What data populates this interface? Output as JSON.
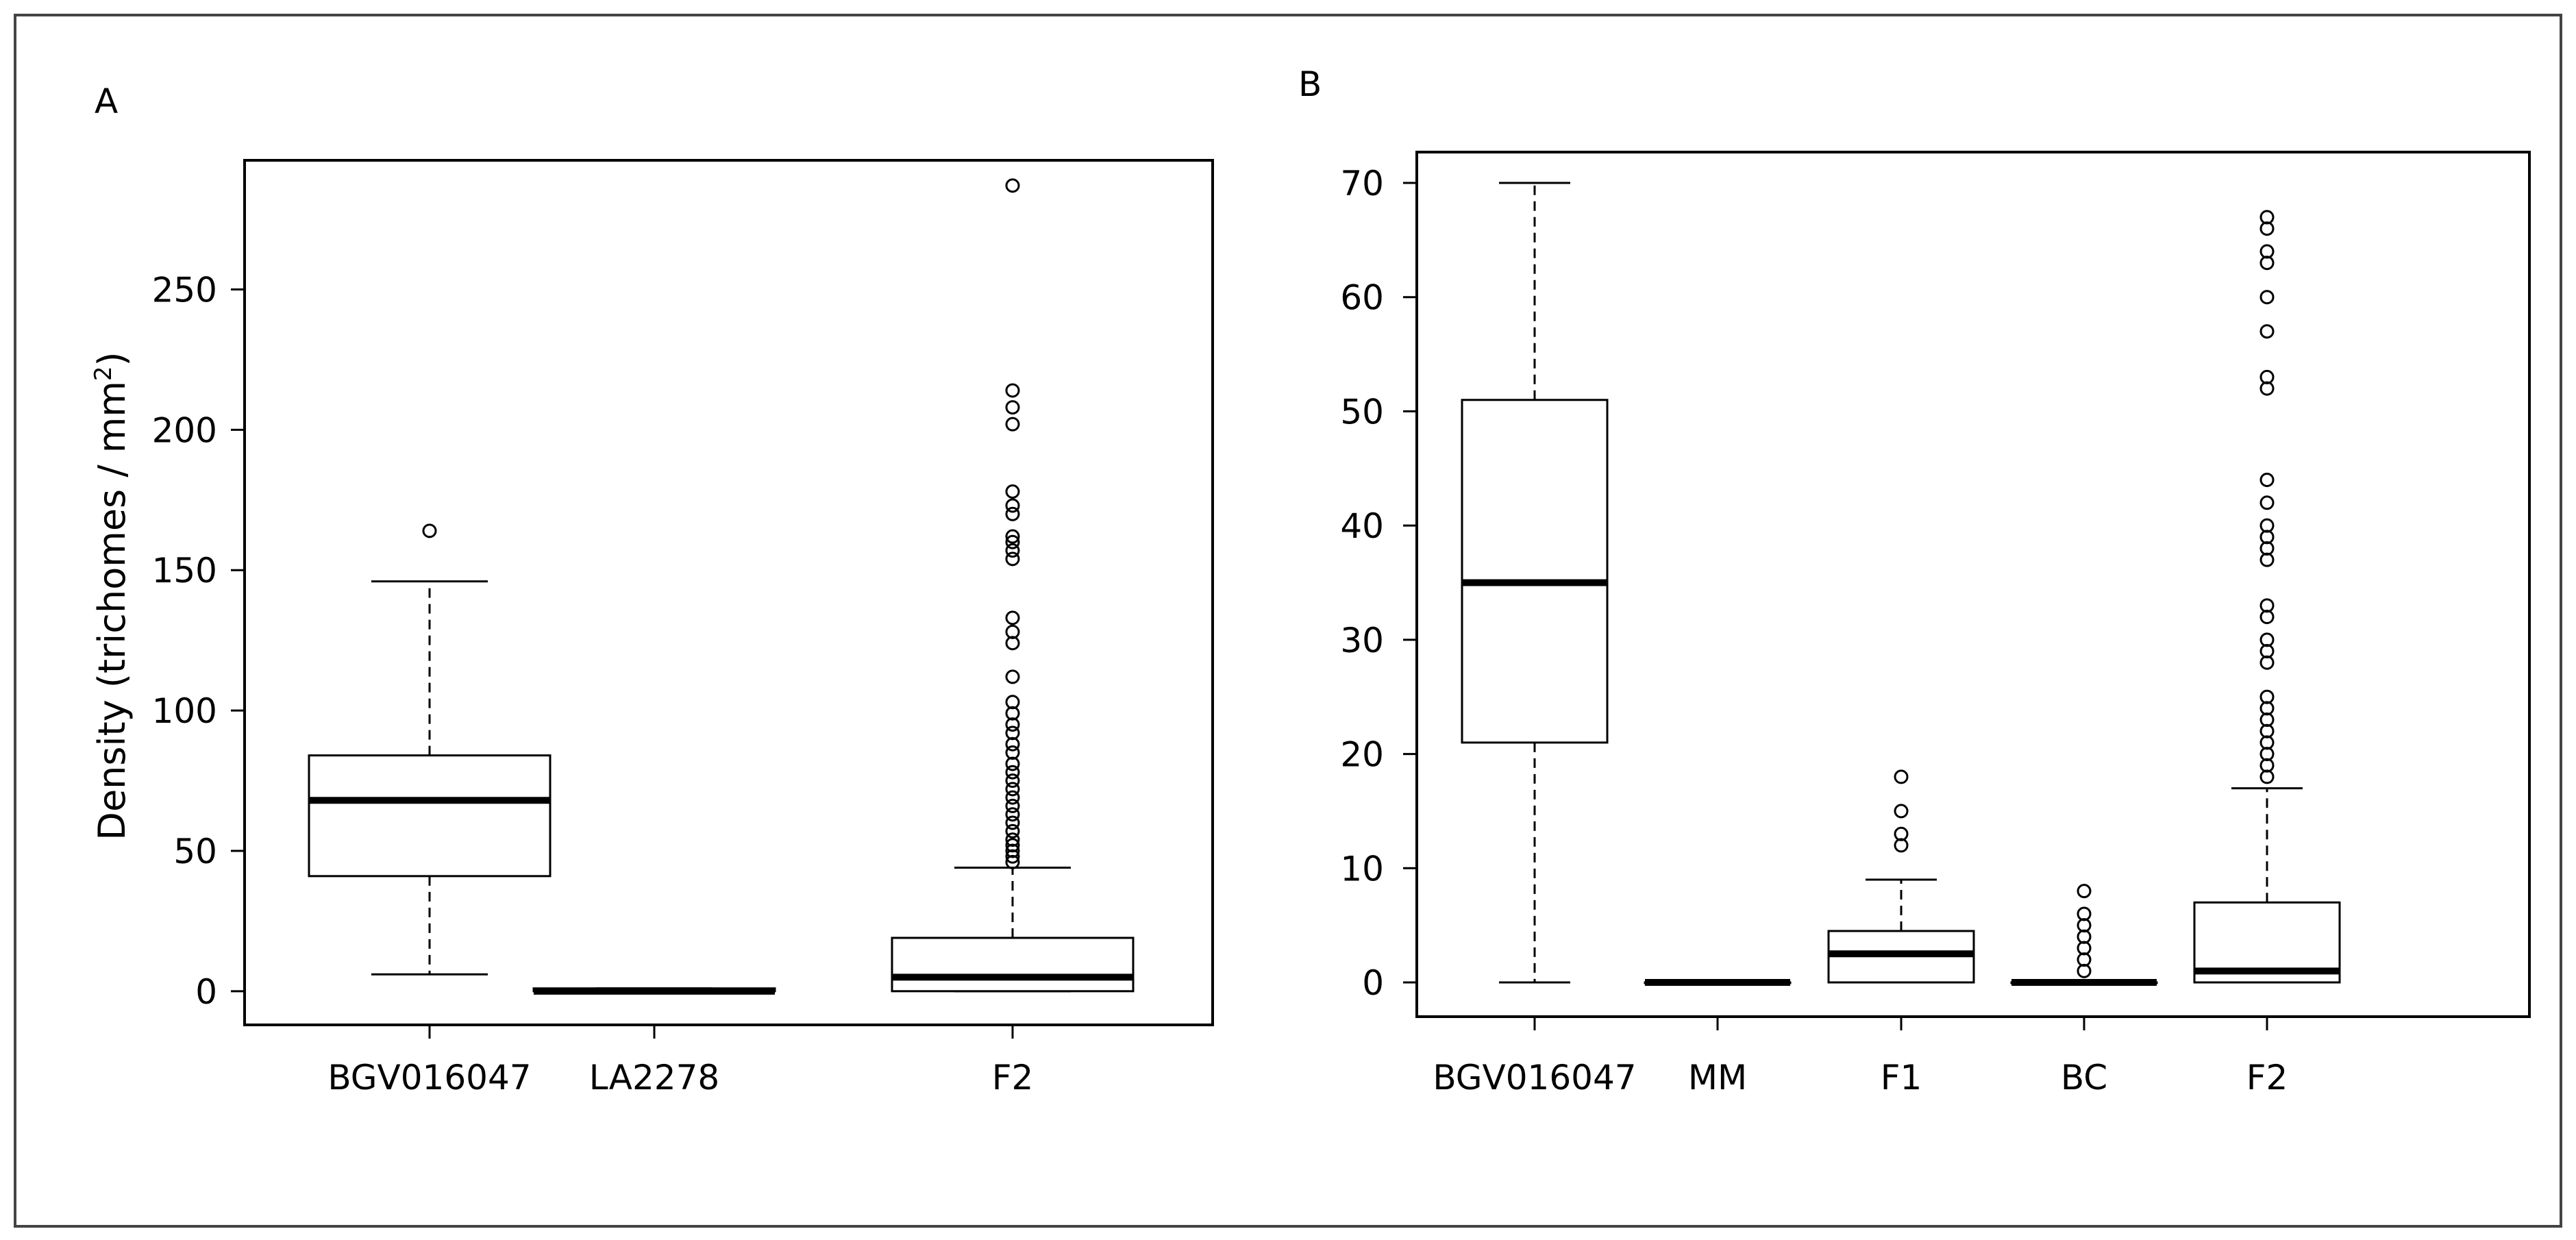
{
  "chart_data": [
    {
      "type": "boxplot",
      "panel_label": "A",
      "ylabel": "Density (trichomes / mm",
      "ylabel_sup": "2",
      "ylabel_end": ")",
      "ylim": [
        -12,
        296
      ],
      "yticks": [
        0,
        50,
        100,
        150,
        200,
        250
      ],
      "categories": [
        "BGV016047",
        "LA2278",
        "F2"
      ],
      "boxes": [
        {
          "name": "BGV016047",
          "whisker_low": 6,
          "q1": 41,
          "median": 68,
          "q3": 84,
          "whisker_high": 146,
          "outliers": [
            164
          ]
        },
        {
          "name": "LA2278",
          "whisker_low": 0,
          "q1": 0,
          "median": 0,
          "q3": 1,
          "whisker_high": 1,
          "outliers": []
        },
        {
          "name": "F2",
          "whisker_low": 0,
          "q1": 0,
          "median": 5,
          "q3": 19,
          "whisker_high": 44,
          "outliers": [
            46,
            48,
            50,
            52,
            54,
            57,
            60,
            63,
            66,
            69,
            72,
            75,
            78,
            81,
            85,
            88,
            92,
            95,
            99,
            103,
            112,
            124,
            128,
            133,
            154,
            157,
            160,
            162,
            170,
            173,
            178,
            202,
            208,
            214,
            287
          ]
        }
      ]
    },
    {
      "type": "boxplot",
      "panel_label": "B",
      "ylim": [
        -3,
        72.7
      ],
      "yticks": [
        0,
        10,
        20,
        30,
        40,
        50,
        60,
        70
      ],
      "categories": [
        "BGV016047",
        "MM",
        "F1",
        "BC",
        "F2"
      ],
      "boxes": [
        {
          "name": "BGV016047",
          "whisker_low": 0,
          "q1": 21,
          "median": 35,
          "q3": 51,
          "whisker_high": 70,
          "outliers": []
        },
        {
          "name": "MM",
          "whisker_low": 0,
          "q1": 0,
          "median": 0,
          "q3": 0,
          "whisker_high": 0,
          "outliers": []
        },
        {
          "name": "F1",
          "whisker_low": 0,
          "q1": 0,
          "median": 2.5,
          "q3": 4.5,
          "whisker_high": 9,
          "outliers": [
            12,
            13,
            15,
            18
          ]
        },
        {
          "name": "BC",
          "whisker_low": 0,
          "q1": 0,
          "median": 0,
          "q3": 0,
          "whisker_high": 0,
          "outliers": [
            1,
            2,
            3,
            4,
            5,
            6,
            8
          ]
        },
        {
          "name": "F2",
          "whisker_low": 0,
          "q1": 0,
          "median": 1,
          "q3": 7,
          "whisker_high": 17,
          "outliers": [
            18,
            19,
            20,
            21,
            22,
            23,
            24,
            25,
            28,
            29,
            30,
            32,
            33,
            37,
            38,
            39,
            40,
            42,
            44,
            52,
            53,
            57,
            60,
            63,
            64,
            66,
            67
          ]
        }
      ]
    }
  ]
}
